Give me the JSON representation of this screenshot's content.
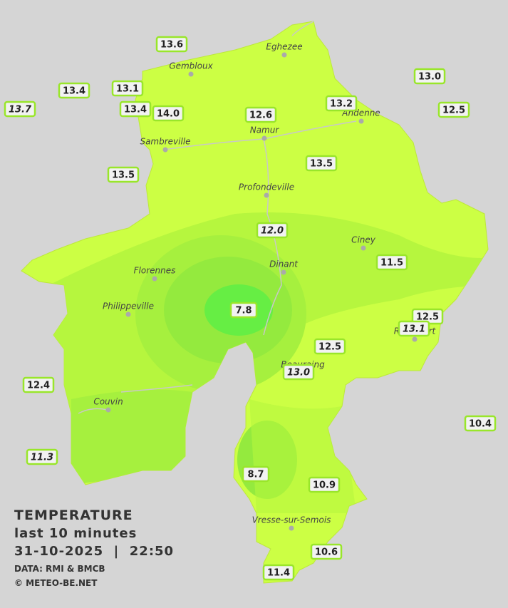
{
  "legend": {
    "title": "TEMPERATURE",
    "subtitle": "last 10 minutes",
    "datetime": "31-10-2025  |  22:50",
    "source": "DATA: RMI & BMCB",
    "credit": "© METEO-BE.NET"
  },
  "cities": [
    "Eghezee",
    "Gembloux",
    "Andenne",
    "Namur",
    "Sambreville",
    "Profondeville",
    "Ciney",
    "Dinant",
    "Florennes",
    "Philippeville",
    "Rochefort",
    "Beauraing",
    "Couvin",
    "Vresse-sur-Semois"
  ],
  "stations": [
    {
      "text": "13.6",
      "italic": false
    },
    {
      "text": "13.4",
      "italic": false
    },
    {
      "text": "13.1",
      "italic": false
    },
    {
      "text": "13.7",
      "italic": true
    },
    {
      "text": "13.4",
      "italic": false
    },
    {
      "text": "14.0",
      "italic": false
    },
    {
      "text": "12.6",
      "italic": false
    },
    {
      "text": "13.2",
      "italic": false
    },
    {
      "text": "13.0",
      "italic": false
    },
    {
      "text": "12.5",
      "italic": false
    },
    {
      "text": "13.5",
      "italic": false
    },
    {
      "text": "13.5",
      "italic": false
    },
    {
      "text": "12.0",
      "italic": true
    },
    {
      "text": "11.5",
      "italic": false
    },
    {
      "text": "7.8",
      "italic": false
    },
    {
      "text": "12.5",
      "italic": false
    },
    {
      "text": "13.1",
      "italic": true
    },
    {
      "text": "12.5",
      "italic": false
    },
    {
      "text": "13.0",
      "italic": true
    },
    {
      "text": "12.4",
      "italic": false
    },
    {
      "text": "10.4",
      "italic": false
    },
    {
      "text": "11.3",
      "italic": true
    },
    {
      "text": "8.7",
      "italic": false
    },
    {
      "text": "10.9",
      "italic": false
    },
    {
      "text": "10.6",
      "italic": false
    },
    {
      "text": "11.4",
      "italic": false
    }
  ]
}
